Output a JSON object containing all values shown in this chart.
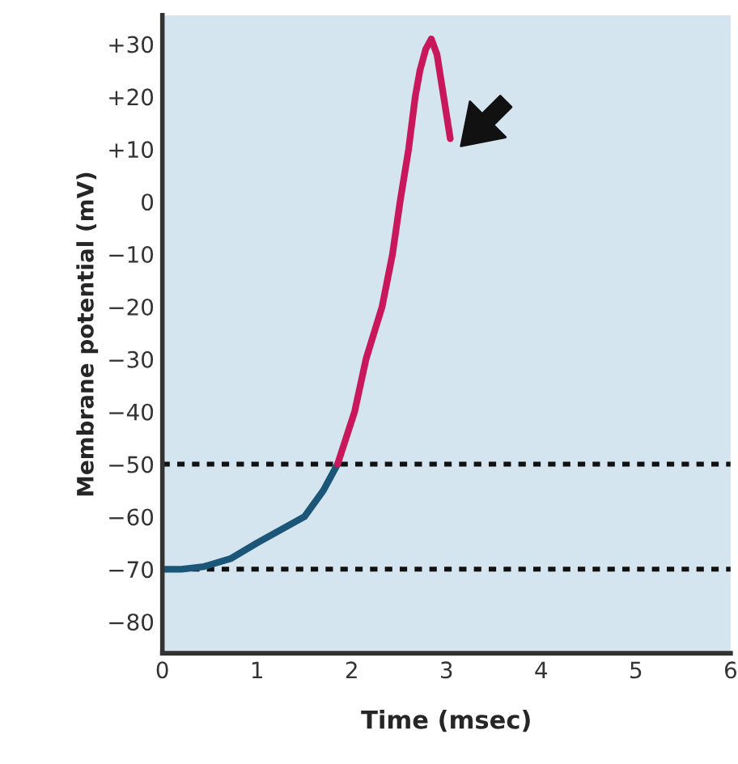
{
  "chart_data": {
    "type": "line",
    "xlabel": "Time (msec)",
    "ylabel": "Membrane potential (mV)",
    "series": [
      {
        "color": "#1b5577",
        "x": [
          0,
          0.2,
          0.44,
          0.72,
          1.0,
          1.25,
          1.5,
          1.7,
          1.85
        ],
        "values": [
          -70,
          -70,
          -69.5,
          -68,
          -65,
          -62.5,
          -60,
          -55,
          -50
        ]
      },
      {
        "color": "#c8175a",
        "x": [
          1.85,
          2.03,
          2.15,
          2.32,
          2.43,
          2.51,
          2.6,
          2.67,
          2.72,
          2.78,
          2.84,
          2.9,
          2.97,
          3.04
        ],
        "values": [
          -50,
          -40,
          -30,
          -20,
          -10,
          0,
          10,
          20,
          25,
          29,
          31,
          28,
          20,
          12
        ]
      }
    ],
    "xlim": [
      0,
      6
    ],
    "xticks": [
      0,
      1,
      2,
      3,
      4,
      5,
      6
    ],
    "ylim": [
      -86,
      35.5
    ],
    "yticks": [
      {
        "value": -80,
        "label": "−80"
      },
      {
        "value": -70,
        "label": "−70"
      },
      {
        "value": -60,
        "label": "−60"
      },
      {
        "value": -50,
        "label": "−50"
      },
      {
        "value": -40,
        "label": "−40"
      },
      {
        "value": -30,
        "label": "−30"
      },
      {
        "value": -20,
        "label": "−20"
      },
      {
        "value": -10,
        "label": "−10"
      },
      0,
      {
        "value": 10,
        "label": "+10"
      },
      {
        "value": 20,
        "label": "+20"
      },
      {
        "value": 30,
        "label": "+30"
      }
    ],
    "ref_lines": [
      {
        "axis": "y",
        "value": -50,
        "color": "#111111",
        "line_style": "dotted"
      },
      {
        "axis": "y",
        "value": -70,
        "color": "#111111",
        "line_style": "dotted"
      }
    ],
    "grid": false,
    "marker": "none",
    "line_style": "solid"
  }
}
